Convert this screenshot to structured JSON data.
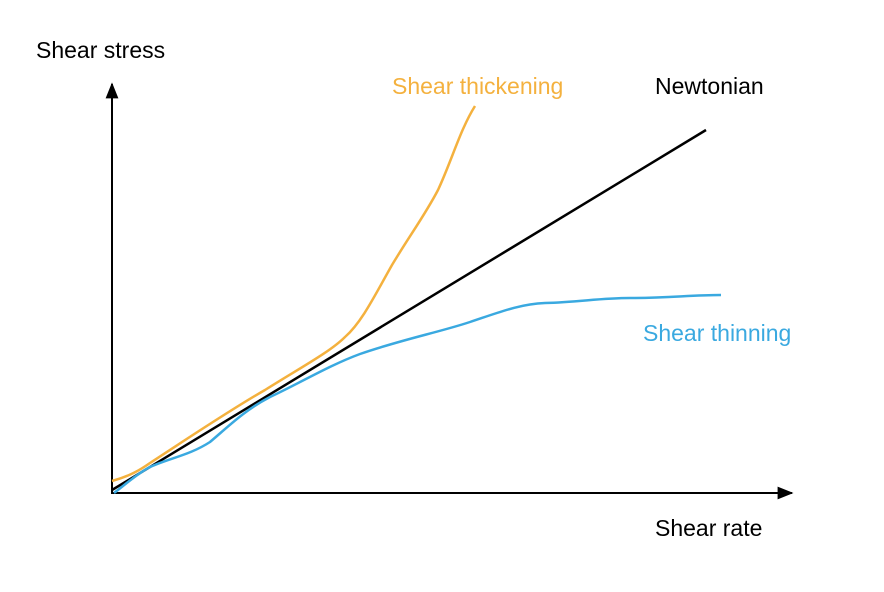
{
  "axes": {
    "y_label": "Shear stress",
    "x_label": "Shear rate"
  },
  "curves": [
    {
      "label": "Shear thickening"
    },
    {
      "label": "Newtonian"
    },
    {
      "label": "Shear thinning"
    }
  ]
}
